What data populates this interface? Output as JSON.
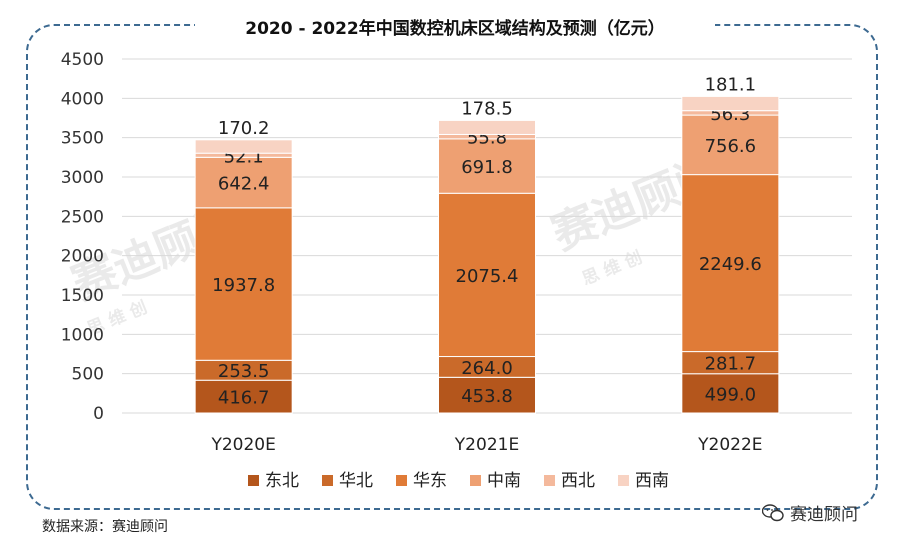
{
  "title": "2020 - 2022年中国数控机床区域结构及预测（亿元）",
  "source": "数据来源：赛迪顾问",
  "brand": "赛迪顾问",
  "watermark": {
    "main": "赛迪顾问",
    "sub": "思 维 创"
  },
  "colors": {
    "frame": "#3d6a91",
    "series": [
      "#b4561c",
      "#ca6a2a",
      "#e07b37",
      "#eea072",
      "#f4b99c",
      "#f8d3c3"
    ]
  },
  "chart_data": {
    "type": "bar",
    "stacked": true,
    "title": "2020 - 2022年中国数控机床区域结构及预测（亿元）",
    "categories": [
      "Y2020E",
      "Y2021E",
      "Y2022E"
    ],
    "series": [
      {
        "name": "东北",
        "values": [
          416.7,
          453.8,
          499.0
        ]
      },
      {
        "name": "华北",
        "values": [
          253.5,
          264.0,
          281.7
        ]
      },
      {
        "name": "华东",
        "values": [
          1937.8,
          2075.4,
          2249.6
        ]
      },
      {
        "name": "中南",
        "values": [
          642.4,
          691.8,
          756.6
        ]
      },
      {
        "name": "西北",
        "values": [
          52.1,
          55.8,
          56.3
        ]
      },
      {
        "name": "西南",
        "values": [
          170.2,
          178.5,
          181.1
        ]
      }
    ],
    "yticks": [
      "0",
      "500",
      "1000",
      "1500",
      "2000",
      "2500",
      "3000",
      "3500",
      "4000",
      "4500"
    ],
    "ylim": [
      0,
      4500
    ],
    "grid": true,
    "legend_position": "bottom"
  }
}
